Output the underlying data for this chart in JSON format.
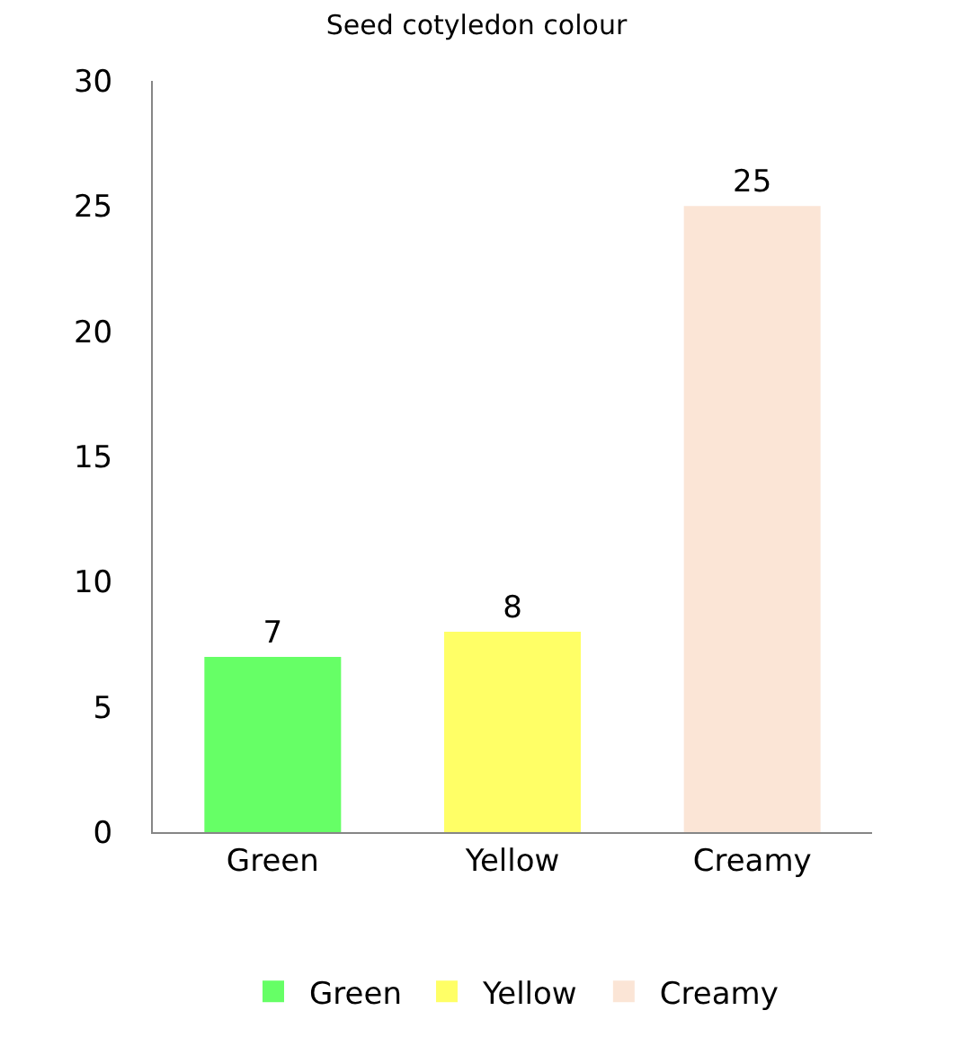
{
  "chart_data": {
    "type": "bar",
    "title": "Seed cotyledon colour",
    "categories": [
      "Green",
      "Yellow",
      "Creamy"
    ],
    "series": [
      {
        "name": "Green",
        "color": "#66ff66",
        "values": [
          7,
          null,
          null
        ]
      },
      {
        "name": "Yellow",
        "color": "#ffff66",
        "values": [
          null,
          8,
          null
        ]
      },
      {
        "name": "Creamy",
        "color": "#fbe5d6",
        "values": [
          null,
          null,
          25
        ]
      }
    ],
    "ylim": [
      0,
      30
    ],
    "yticks": [
      0,
      5,
      10,
      15,
      20,
      25,
      30
    ],
    "data_labels": true,
    "legend": "bottom"
  }
}
